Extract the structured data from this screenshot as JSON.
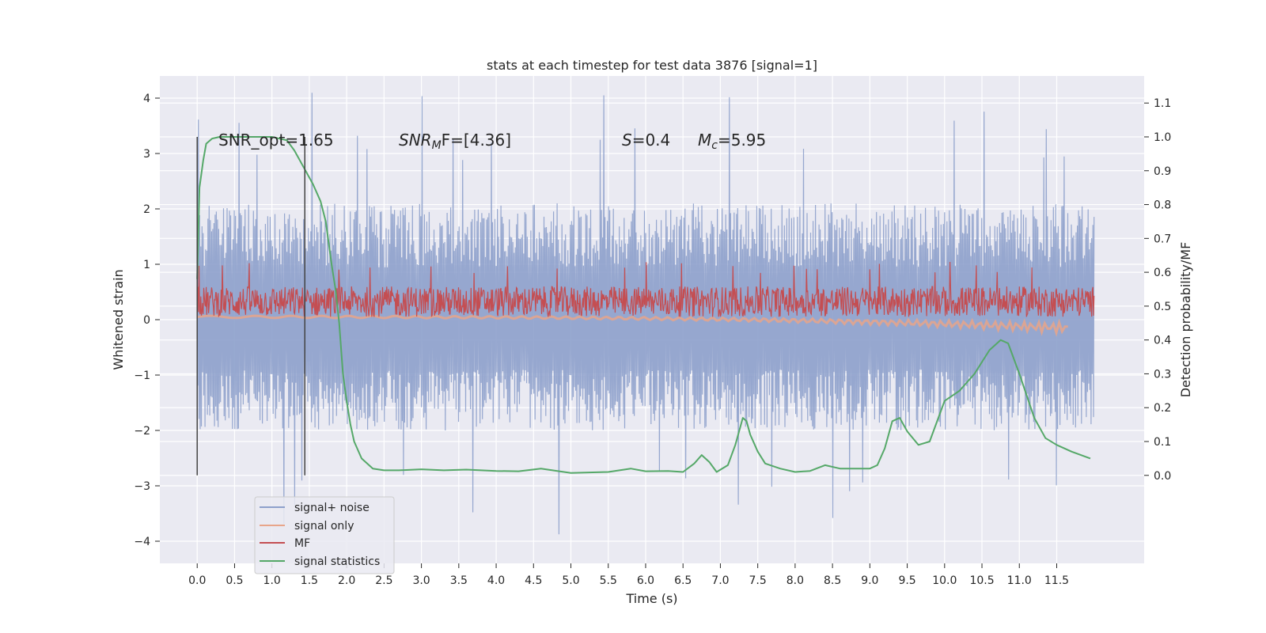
{
  "chart_data": {
    "type": "line",
    "title": "stats at each timestep for test data 3876 [signal=1]",
    "xlabel": "Time (s)",
    "ylabel": "Whitened strain",
    "y2label": "Detection probability/MF",
    "xlim": [
      -0.5,
      12.67
    ],
    "ylim": [
      -4.4,
      4.4
    ],
    "y2lim": [
      -0.26,
      1.18
    ],
    "grid": true,
    "legend_position": "lower-left",
    "xticks": [
      "0.0",
      "0.5",
      "1.0",
      "1.5",
      "2.0",
      "2.5",
      "3.0",
      "3.5",
      "4.0",
      "4.5",
      "5.0",
      "5.5",
      "6.0",
      "6.5",
      "7.0",
      "7.5",
      "8.0",
      "8.5",
      "9.0",
      "9.5",
      "10.0",
      "10.5",
      "11.0",
      "11.5"
    ],
    "yticks": [
      4,
      3,
      2,
      1,
      0,
      -1,
      -2,
      -3,
      -4
    ],
    "y2ticks": [
      "0.0",
      "0.1",
      "0.2",
      "0.3",
      "0.4",
      "0.5",
      "0.6",
      "0.7",
      "0.8",
      "0.9",
      "1.0",
      "1.1"
    ],
    "annotations": {
      "snr_opt": "SNR_opt=1.65",
      "snr_mf_prefix": "SNR",
      "snr_mf_sub": "M",
      "snr_mf_suffix": "F=[4.36]",
      "s_symbol": "S",
      "s_value": "=0.4",
      "mc_symbol": "M",
      "mc_sub": "c",
      "mc_value": "=5.95"
    },
    "markers_x": [
      0.0,
      1.44
    ],
    "series": [
      {
        "name": "signal+ noise",
        "color": "#8da0cb",
        "kind": "noise",
        "x_range": [
          0.0,
          12.0
        ],
        "typical_range": [
          -2.0,
          2.1
        ],
        "extreme_range": [
          -3.9,
          4.1
        ]
      },
      {
        "name": "signal only",
        "color": "#e8a58a",
        "kind": "chirp",
        "x_range": [
          0.0,
          11.65
        ],
        "y_start": 0.05,
        "y_end": -0.15
      },
      {
        "name": "MF",
        "color": "#c44e52",
        "kind": "noise",
        "x_range": [
          0.0,
          12.0
        ],
        "typical_range": [
          0.05,
          0.6
        ],
        "extreme_range": [
          0.0,
          1.05
        ]
      },
      {
        "name": "signal statistics",
        "color": "#55a868",
        "axis": "right",
        "x": [
          0.0,
          0.03,
          0.08,
          0.12,
          0.2,
          0.3,
          0.5,
          1.0,
          1.2,
          1.3,
          1.45,
          1.55,
          1.65,
          1.72,
          1.8,
          1.85,
          1.9,
          1.95,
          2.0,
          2.05,
          2.1,
          2.2,
          2.35,
          2.5,
          2.7,
          3.0,
          3.3,
          3.6,
          4.0,
          4.3,
          4.6,
          5.0,
          5.5,
          5.8,
          6.0,
          6.3,
          6.5,
          6.65,
          6.75,
          6.85,
          6.95,
          7.1,
          7.2,
          7.3,
          7.35,
          7.4,
          7.5,
          7.6,
          7.8,
          8.0,
          8.2,
          8.4,
          8.6,
          8.8,
          9.0,
          9.1,
          9.2,
          9.3,
          9.4,
          9.5,
          9.65,
          9.8,
          10.0,
          10.2,
          10.4,
          10.6,
          10.75,
          10.85,
          11.0,
          11.2,
          11.35,
          11.5,
          11.7,
          11.95
        ],
        "y": [
          0.58,
          0.85,
          0.93,
          0.98,
          0.995,
          1.0,
          1.0,
          1.0,
          0.99,
          0.96,
          0.9,
          0.86,
          0.81,
          0.75,
          0.62,
          0.55,
          0.45,
          0.3,
          0.22,
          0.15,
          0.1,
          0.05,
          0.02,
          0.015,
          0.015,
          0.018,
          0.015,
          0.017,
          0.013,
          0.012,
          0.02,
          0.007,
          0.01,
          0.02,
          0.012,
          0.013,
          0.01,
          0.035,
          0.06,
          0.04,
          0.01,
          0.03,
          0.09,
          0.17,
          0.16,
          0.12,
          0.07,
          0.035,
          0.02,
          0.01,
          0.013,
          0.03,
          0.02,
          0.02,
          0.02,
          0.03,
          0.08,
          0.16,
          0.17,
          0.13,
          0.09,
          0.1,
          0.22,
          0.25,
          0.3,
          0.37,
          0.4,
          0.39,
          0.3,
          0.17,
          0.11,
          0.09,
          0.07,
          0.05
        ]
      }
    ]
  }
}
